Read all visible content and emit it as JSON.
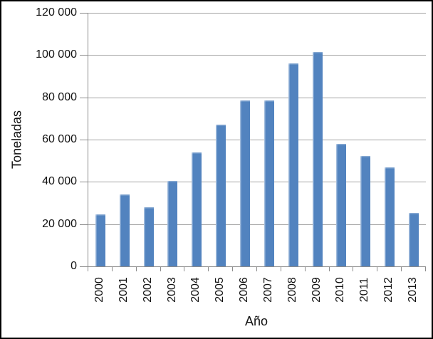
{
  "chart_data": {
    "type": "bar",
    "title": "",
    "xlabel": "Año",
    "ylabel": "Toneladas",
    "categories": [
      "2000",
      "2001",
      "2002",
      "2003",
      "2004",
      "2005",
      "2006",
      "2007",
      "2008",
      "2009",
      "2010",
      "2011",
      "2012",
      "2013"
    ],
    "values": [
      24500,
      34000,
      28000,
      40500,
      53800,
      67000,
      78700,
      78600,
      96200,
      101300,
      58000,
      52300,
      47000,
      25200
    ],
    "ylim": [
      0,
      120000
    ],
    "ytick_interval": 20000,
    "ytick_labels": [
      "0",
      "20 000",
      "40 000",
      "60 000",
      "80 000",
      "100 000",
      "120 000"
    ],
    "grid": "horizontal",
    "legend": "none",
    "colors": {
      "bar": "#5283bf",
      "bar_highlight": "#b7cbe5",
      "gridline": "#a3a3a3",
      "axis": "#8c8c8c",
      "text": "#111111",
      "frame_border": "#000000",
      "background": "#ffffff"
    }
  }
}
